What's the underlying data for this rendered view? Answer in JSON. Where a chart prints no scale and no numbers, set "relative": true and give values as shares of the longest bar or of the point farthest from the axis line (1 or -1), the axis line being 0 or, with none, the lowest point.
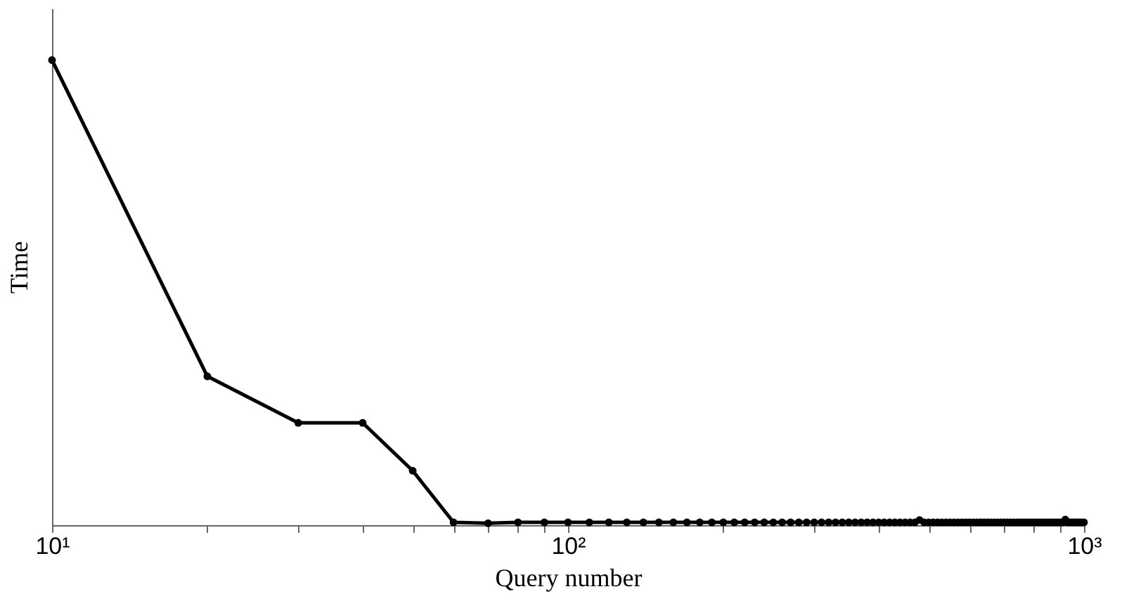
{
  "chart_data": {
    "type": "line",
    "xlabel": "Query number",
    "ylabel": "Time",
    "relative": true,
    "log": "x",
    "marker": "circle",
    "line_style": "solid",
    "grid": false,
    "legend": false,
    "tick_labels": "x",
    "xlim": [
      10,
      1000
    ],
    "xticks": [
      {
        "value": 10,
        "label": "10¹"
      },
      {
        "value": 20,
        "label": null
      },
      {
        "value": 30,
        "label": null
      },
      {
        "value": 40,
        "label": null
      },
      {
        "value": 50,
        "label": null
      },
      {
        "value": 60,
        "label": null
      },
      {
        "value": 70,
        "label": null
      },
      {
        "value": 80,
        "label": null
      },
      {
        "value": 90,
        "label": null
      },
      {
        "value": 100,
        "label": "10²"
      },
      {
        "value": 200,
        "label": null
      },
      {
        "value": 300,
        "label": null
      },
      {
        "value": 400,
        "label": null
      },
      {
        "value": 500,
        "label": null
      },
      {
        "value": 600,
        "label": null
      },
      {
        "value": 700,
        "label": null
      },
      {
        "value": 800,
        "label": null
      },
      {
        "value": 900,
        "label": null
      },
      {
        "value": 1000,
        "label": "10³"
      }
    ],
    "x": [
      10,
      20,
      30,
      40,
      50,
      60,
      70,
      80,
      90,
      100,
      110,
      120,
      130,
      140,
      150,
      160,
      170,
      180,
      190,
      200,
      210,
      220,
      230,
      240,
      250,
      260,
      270,
      280,
      290,
      300,
      310,
      320,
      330,
      340,
      350,
      360,
      370,
      380,
      390,
      400,
      410,
      420,
      430,
      440,
      450,
      460,
      470,
      480,
      490,
      500,
      510,
      520,
      530,
      540,
      550,
      560,
      570,
      580,
      590,
      600,
      610,
      620,
      630,
      640,
      650,
      660,
      670,
      680,
      690,
      700,
      710,
      720,
      730,
      740,
      750,
      760,
      770,
      780,
      790,
      800,
      810,
      820,
      830,
      840,
      850,
      860,
      870,
      880,
      890,
      900,
      910,
      920,
      930,
      940,
      950,
      960,
      970,
      980,
      990,
      1000
    ],
    "series": [
      {
        "color": "#000000",
        "values": [
          1,
          0.32,
          0.22,
          0.22,
          0.117,
          0.006,
          0.004,
          0.006,
          0.006,
          0.006,
          0.006,
          0.006,
          0.006,
          0.006,
          0.006,
          0.006,
          0.006,
          0.006,
          0.006,
          0.006,
          0.006,
          0.006,
          0.006,
          0.006,
          0.006,
          0.006,
          0.006,
          0.006,
          0.006,
          0.006,
          0.006,
          0.006,
          0.006,
          0.006,
          0.006,
          0.006,
          0.006,
          0.006,
          0.006,
          0.006,
          0.006,
          0.006,
          0.006,
          0.006,
          0.006,
          0.006,
          0.006,
          0.011,
          0.006,
          0.006,
          0.006,
          0.006,
          0.006,
          0.006,
          0.006,
          0.006,
          0.006,
          0.006,
          0.006,
          0.006,
          0.006,
          0.006,
          0.006,
          0.006,
          0.006,
          0.006,
          0.006,
          0.006,
          0.006,
          0.006,
          0.006,
          0.006,
          0.006,
          0.006,
          0.006,
          0.006,
          0.006,
          0.006,
          0.006,
          0.006,
          0.006,
          0.006,
          0.006,
          0.006,
          0.006,
          0.006,
          0.006,
          0.006,
          0.006,
          0.006,
          0.006,
          0.012,
          0.006,
          0.006,
          0.006,
          0.006,
          0.006,
          0.006,
          0.006,
          0.006
        ]
      }
    ]
  }
}
